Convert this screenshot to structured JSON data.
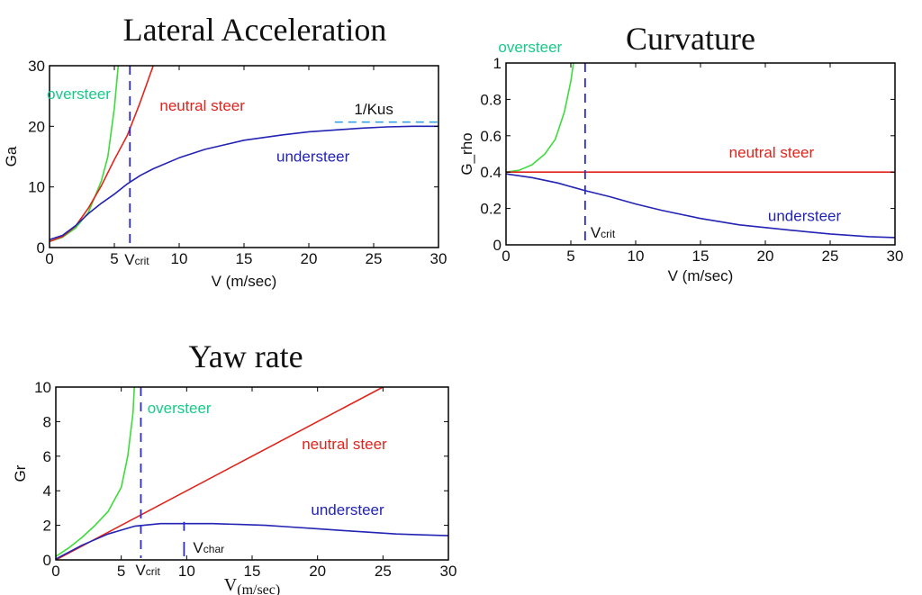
{
  "colors": {
    "oversteer": "#3ddc3a",
    "neutral": "#e0241b",
    "understeer": "#2323b4",
    "oversteer_label": "#19c98a",
    "crit_line": "#2a2ad0",
    "kus_line": "#2a9ae8"
  },
  "chart_data": [
    {
      "id": "lateral",
      "type": "line",
      "title": "Lateral Acceleration",
      "xlabel": "V (m/sec)",
      "ylabel": "Ga",
      "xlim": [
        0,
        30
      ],
      "ylim": [
        0,
        30
      ],
      "xticks": [
        0,
        5,
        10,
        15,
        20,
        25,
        30
      ],
      "yticks": [
        0,
        10,
        20,
        30
      ],
      "series": [
        {
          "name": "oversteer",
          "color": "#3ddc3a",
          "x": [
            0,
            1,
            2,
            3,
            4,
            4.5,
            5,
            5.3
          ],
          "y": [
            1.0,
            1.7,
            3.2,
            5.8,
            11,
            15,
            23,
            30
          ]
        },
        {
          "name": "neutral steer",
          "color": "#e0241b",
          "x": [
            0,
            1,
            2,
            3,
            4,
            5,
            6,
            7,
            8
          ],
          "y": [
            1.0,
            1.8,
            3.5,
            6.5,
            10.2,
            14.5,
            18.5,
            24,
            30
          ]
        },
        {
          "name": "understeer",
          "color": "#2323b4",
          "x": [
            0,
            1,
            2,
            3,
            4,
            5,
            6,
            7,
            8,
            10,
            12,
            15,
            18,
            20,
            22,
            24,
            26,
            28,
            30
          ],
          "y": [
            1.3,
            2.0,
            3.6,
            5.6,
            7.3,
            8.8,
            10.5,
            11.9,
            13.0,
            14.8,
            16.2,
            17.7,
            18.6,
            19.1,
            19.4,
            19.7,
            19.9,
            20.0,
            20.0
          ]
        }
      ],
      "annotations": [
        {
          "text": "oversteer",
          "color": "#19c98a",
          "x": -0.2,
          "y": 24.5
        },
        {
          "text": "neutral steer",
          "color": "#e0241b",
          "x": 8.5,
          "y": 22.6
        },
        {
          "text": "understeer",
          "color": "#2323b4",
          "x": 17.5,
          "y": 14.2
        },
        {
          "text": "1/Kus",
          "color": "#111111",
          "x": 23.5,
          "y": 22.0
        }
      ],
      "vline": {
        "x": 6.2,
        "label": "V",
        "sub": "crit"
      },
      "hline": {
        "y": 20.7,
        "x0": 22,
        "x1": 30
      }
    },
    {
      "id": "curvature",
      "type": "line",
      "title": "Curvature",
      "xlabel": "V (m/sec)",
      "ylabel": "G_rho",
      "xlim": [
        0,
        30
      ],
      "ylim": [
        0,
        1
      ],
      "xticks": [
        0,
        5,
        10,
        15,
        20,
        25,
        30
      ],
      "yticks": [
        0,
        0.2,
        0.4,
        0.6,
        0.8,
        1
      ],
      "series": [
        {
          "name": "oversteer",
          "color": "#3ddc3a",
          "x": [
            0,
            1,
            2,
            3,
            3.8,
            4.5,
            5,
            5.2
          ],
          "y": [
            0.4,
            0.41,
            0.44,
            0.5,
            0.58,
            0.73,
            0.9,
            1.0
          ]
        },
        {
          "name": "neutral steer",
          "color": "#e0241b",
          "x": [
            0,
            30
          ],
          "y": [
            0.4,
            0.4
          ]
        },
        {
          "name": "understeer",
          "color": "#2323b4",
          "x": [
            0,
            2,
            4,
            6,
            8,
            10,
            12,
            15,
            18,
            20,
            22,
            25,
            28,
            30
          ],
          "y": [
            0.39,
            0.37,
            0.34,
            0.3,
            0.265,
            0.225,
            0.19,
            0.145,
            0.11,
            0.095,
            0.08,
            0.06,
            0.045,
            0.04
          ]
        }
      ],
      "annotations": [
        {
          "text": "oversteer",
          "color": "#19c98a",
          "x": -0.6,
          "y": 1.06
        },
        {
          "text": "neutral steer",
          "color": "#e0241b",
          "x": 17.2,
          "y": 0.48
        },
        {
          "text": "understeer",
          "color": "#2323b4",
          "x": 20.2,
          "y": 0.13
        }
      ],
      "vline": {
        "x": 6.1,
        "label": "V",
        "sub": "crit"
      }
    },
    {
      "id": "yaw",
      "type": "line",
      "title": "Yaw rate",
      "xlabel": "V",
      "xlabel_sub": "(m/sec)",
      "ylabel": "Gr",
      "xlim": [
        0,
        30
      ],
      "ylim": [
        0,
        10
      ],
      "xticks": [
        0,
        5,
        10,
        15,
        20,
        25,
        30
      ],
      "yticks": [
        0,
        2,
        4,
        6,
        8,
        10
      ],
      "series": [
        {
          "name": "oversteer",
          "color": "#3ddc3a",
          "x": [
            0,
            1,
            2,
            3,
            4,
            5,
            5.5,
            5.9,
            6.0
          ],
          "y": [
            0.2,
            0.7,
            1.3,
            2.0,
            2.8,
            4.2,
            6.0,
            8.5,
            10.0
          ]
        },
        {
          "name": "neutral steer",
          "color": "#e0241b",
          "x": [
            0,
            25
          ],
          "y": [
            0,
            10
          ]
        },
        {
          "name": "understeer",
          "color": "#2323b4",
          "x": [
            0,
            2,
            4,
            6,
            8,
            10,
            12,
            14,
            16,
            18,
            20,
            22,
            24,
            26,
            28,
            30
          ],
          "y": [
            0.05,
            0.85,
            1.5,
            1.95,
            2.1,
            2.1,
            2.1,
            2.05,
            2.0,
            1.9,
            1.8,
            1.7,
            1.6,
            1.5,
            1.45,
            1.4
          ]
        }
      ],
      "annotations": [
        {
          "text": "oversteer",
          "color": "#19c98a",
          "x": 7.0,
          "y": 8.5
        },
        {
          "text": "neutral steer",
          "color": "#e0241b",
          "x": 18.8,
          "y": 6.4
        },
        {
          "text": "understeer",
          "color": "#2323b4",
          "x": 19.5,
          "y": 2.6
        }
      ],
      "vline": {
        "x": 6.5,
        "label": "V",
        "sub": "crit"
      },
      "vline2": {
        "x": 9.8,
        "y0": 0,
        "y1": 2.2,
        "label": "V",
        "sub": "char"
      }
    }
  ]
}
